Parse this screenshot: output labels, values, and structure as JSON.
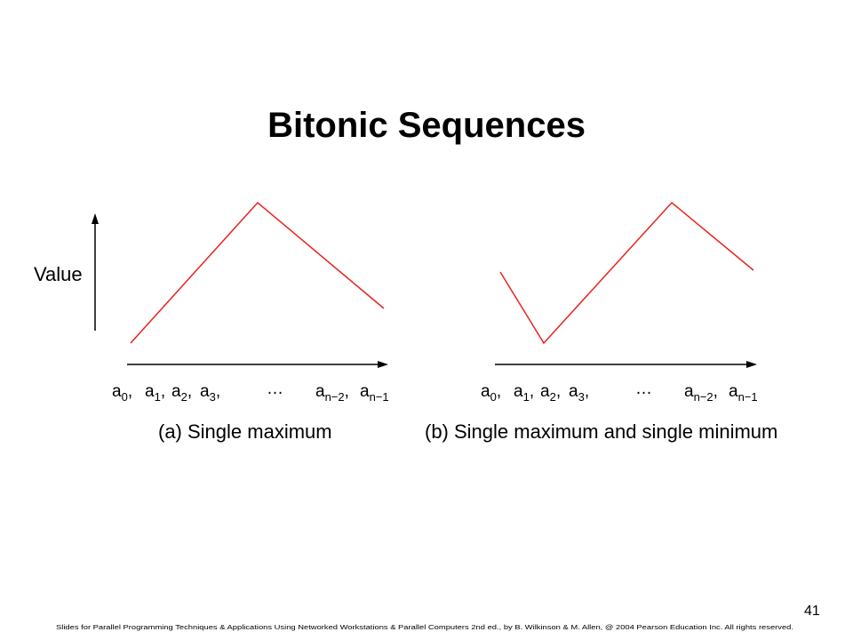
{
  "title": "Bitonic Sequences",
  "y_axis_label": "Value",
  "panels": [
    {
      "caption": "(a) Single maximum",
      "sequence": {
        "terms_left": [
          {
            "base": "a",
            "sub": "0",
            "sep": ","
          },
          {
            "base": "a",
            "sub": "1",
            "sep": ","
          },
          {
            "base": "a",
            "sub": "2",
            "sep": ","
          },
          {
            "base": "a",
            "sub": "3",
            "sep": ","
          }
        ],
        "ellipsis": "…",
        "terms_right": [
          {
            "base": "a",
            "sub": "n−2",
            "sep": ","
          },
          {
            "base": "a",
            "sub": "n−1"
          }
        ]
      }
    },
    {
      "caption": "(b) Single maximum and single minimum",
      "sequence": {
        "terms_left": [
          {
            "base": "a",
            "sub": "0",
            "sep": ","
          },
          {
            "base": "a",
            "sub": "1",
            "sep": ","
          },
          {
            "base": "a",
            "sub": "2",
            "sep": ","
          },
          {
            "base": "a",
            "sub": "3",
            "sep": ","
          }
        ],
        "ellipsis": "…",
        "terms_right": [
          {
            "base": "a",
            "sub": "n−2",
            "sep": ","
          },
          {
            "base": "a",
            "sub": "n−1"
          }
        ]
      }
    }
  ],
  "footer": "Slides for Parallel Programming Techniques & Applications Using Networked Workstations & Parallel Computers 2nd ed., by B. Wilkinson & M. Allen, @ 2004 Pearson Education Inc. All rights reserved.",
  "page_number": "41"
}
